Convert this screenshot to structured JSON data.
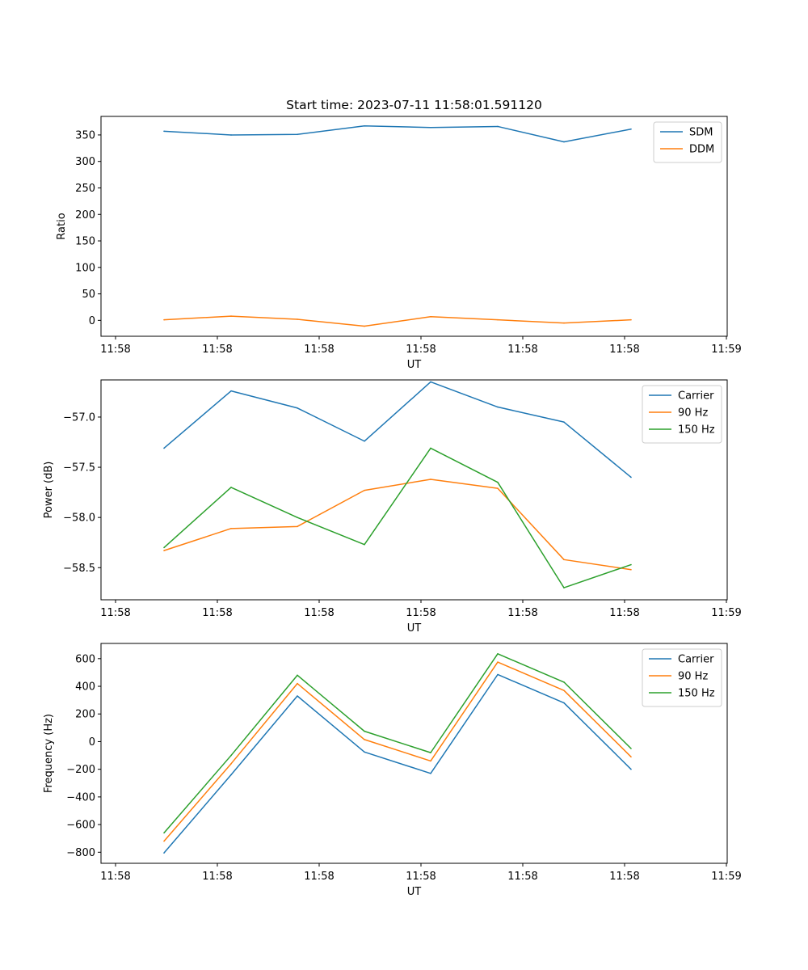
{
  "figure": {
    "title": "Start time: 2023-07-11 11:58:01.591120"
  },
  "chart_data": [
    {
      "type": "line",
      "title": "Start time: 2023-07-11 11:58:01.591120",
      "xlabel": "UT",
      "ylabel": "Ratio",
      "x_ticks": [
        "11:58",
        "11:58",
        "11:58",
        "11:58",
        "11:58",
        "11:58",
        "11:58"
      ],
      "x_last_tick": "11:59",
      "yticks": [
        0,
        50,
        100,
        150,
        200,
        250,
        300,
        350
      ],
      "ylim": [
        -30,
        385
      ],
      "grid": false,
      "legend": "upper right",
      "series": [
        {
          "name": "SDM",
          "color": "#1f77b4",
          "values": [
            357,
            350,
            351,
            367,
            364,
            366,
            337,
            361
          ]
        },
        {
          "name": "DDM",
          "color": "#ff7f0e",
          "values": [
            1,
            8,
            2,
            -11,
            7,
            1,
            -5,
            1
          ]
        }
      ]
    },
    {
      "type": "line",
      "xlabel": "UT",
      "ylabel": "Power (dB)",
      "x_ticks": [
        "11:58",
        "11:58",
        "11:58",
        "11:58",
        "11:58",
        "11:58",
        "11:58"
      ],
      "x_last_tick": "11:59",
      "yticks": [
        -57.0,
        -57.5,
        -58.0,
        -58.5
      ],
      "ylim": [
        -58.82,
        -56.63
      ],
      "grid": false,
      "legend": "upper right",
      "series": [
        {
          "name": "Carrier",
          "color": "#1f77b4",
          "values": [
            -57.31,
            -56.74,
            -56.91,
            -57.24,
            -56.65,
            -56.9,
            -57.05,
            -57.6
          ]
        },
        {
          "name": "90 Hz",
          "color": "#ff7f0e",
          "values": [
            -58.33,
            -58.11,
            -58.09,
            -57.73,
            -57.62,
            -57.71,
            -58.42,
            -58.52
          ]
        },
        {
          "name": "150 Hz",
          "color": "#2ca02c",
          "values": [
            -58.3,
            -57.7,
            -58.0,
            -58.27,
            -57.31,
            -57.65,
            -58.7,
            -58.47
          ]
        }
      ]
    },
    {
      "type": "line",
      "xlabel": "UT",
      "ylabel": "Frequency (Hz)",
      "x_ticks": [
        "11:58",
        "11:58",
        "11:58",
        "11:58",
        "11:58",
        "11:58",
        "11:58"
      ],
      "x_last_tick": "11:59",
      "yticks": [
        -800,
        -600,
        -400,
        -200,
        0,
        200,
        400,
        600
      ],
      "ylim": [
        -880,
        710
      ],
      "grid": false,
      "legend": "upper right",
      "series": [
        {
          "name": "Carrier",
          "color": "#1f77b4",
          "values": [
            -805,
            -240,
            330,
            -75,
            -230,
            485,
            280,
            -200
          ]
        },
        {
          "name": "90 Hz",
          "color": "#ff7f0e",
          "values": [
            -720,
            -160,
            420,
            15,
            -140,
            575,
            370,
            -110
          ]
        },
        {
          "name": "150 Hz",
          "color": "#2ca02c",
          "values": [
            -660,
            -100,
            480,
            75,
            -80,
            635,
            430,
            -50
          ]
        }
      ]
    }
  ]
}
